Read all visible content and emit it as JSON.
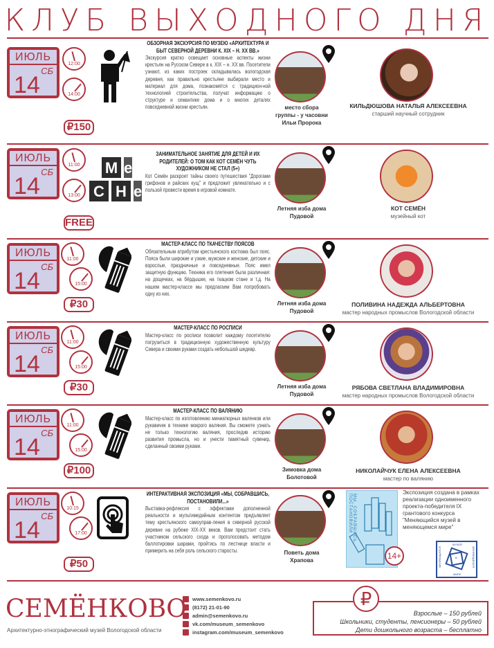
{
  "title": "КЛУБ ВЫХОДНОГО ДНЯ",
  "accent": "#b0323f",
  "calendar_fill": "#d2cfe8",
  "events": [
    {
      "month": "ИЮЛЬ",
      "dow": "СБ",
      "day": "14",
      "times": [
        "12:00",
        "14:00"
      ],
      "price": "₽150",
      "icon": "tour-guide-flag-icon",
      "title": "ОБЗОРНАЯ ЭКСКУРСИЯ ПО МУЗЕЮ «АРХИТЕКТУРА И БЫТ СЕВЕРНОЙ ДЕРЕВНИ К. XIX – Н. XX ВВ.»",
      "body": "Экскурсия кратко освещает основные аспекты жизни крестьян на Русском Севере в к. XIX – н. XX вв. Посетители узнают, из каких построек складывалась вологодская деревня, как правильно крестьяне выбирали место и материал для дома, познакомятся с традицион-ной технологией строительства, получат информацию о структуре и семантике дома и о многих деталях повседневной жизни крестьян.",
      "location": "место сбора группы - у часовни Ильи Пророка",
      "person": "КИЛЬДЮШОВА НАТАЛЬЯ АЛЕКСЕЕВНА",
      "role": "старший научный сотрудник"
    },
    {
      "month": "ИЮЛЬ",
      "dow": "СБ",
      "day": "14",
      "times": [
        "11:00",
        "13:00"
      ],
      "price": "FREE",
      "icon": "letter-cubes-icon",
      "cubes": [
        "М",
        "е",
        "С",
        "Н",
        "е"
      ],
      "title": "ЗАНИМАТЕЛЬНОЕ ЗАНЯТИЕ ДЛЯ ДЕТЕЙ И ИХ РОДИТЕЛЕЙ: О ТОМ КАК КОТ СЕМЁН ЧУТЬ ХУДОЖНИКОМ НЕ СТАЛ (5+)",
      "body": "Кот Семён раскроет тайны своего путешествия \"Дорогами грифонов и райских кущ\" и предложит увлекательно и с пользой провести время в игровой комнате.",
      "location": "Летняя изба дома Пудовой",
      "person": "КОТ СЕМЁН",
      "role": "музейный кот"
    },
    {
      "month": "ИЮЛЬ",
      "dow": "СБ",
      "day": "14",
      "times": [
        "11:00",
        "15:00"
      ],
      "price": "₽30",
      "icon": "pencil-leaf-icon",
      "title": "МАСТЕР-КЛАСС ПО ТКАЧЕСТВУ ПОЯСОВ",
      "body": "Обязательным атрибутом крестьянского костюма был пояс. Пояса были широкие и узкие, мужские и женские, детские и взрослые, праздничные и повседневные. Пояс имел защитную функцию. Техника его плетения была различная: на дощечках, на бёрдышке, на ткацком стане и т.д. На нашем мастер-классе мы предлагаем Вам попробовать одну из них.",
      "location": "Летняя изба дома Пудовой",
      "person": "ПОЛИВИНА НАДЕЖДА АЛЬБЕРТОВНА",
      "role": "мастер народных промыслов Вологодской области"
    },
    {
      "month": "ИЮЛЬ",
      "dow": "СБ",
      "day": "14",
      "times": [
        "11:00",
        "15:00"
      ],
      "price": "₽30",
      "icon": "pencil-leaf-icon",
      "title": "МАСТЕР-КЛАСС ПО РОСПИСИ",
      "body": "Мастер-класс по росписи позволит каждому посетителю погрузиться в традиционную художественную культуру Севера и своими руками создать небольшой шедевр.",
      "location": "Летняя изба дома Пудовой",
      "person": "РЯБОВА СВЕТЛАНА ВЛАДИМИРОВНА",
      "role": "мастер народных промыслов Вологодской области"
    },
    {
      "month": "ИЮЛЬ",
      "dow": "СБ",
      "day": "14",
      "times": [
        "11:00",
        "15:00"
      ],
      "price": "₽100",
      "icon": "pencil-leaf-icon",
      "title": "МАСТЕР-КЛАСС ПО ВАЛЯНИЮ",
      "body": "Мастер-класс по изготовлению миниатюрных валенков или рукавичек в технике мокрого валяния. Вы сможете узнать не только технологию валяния, проследив историю развития промысла, но и унести памятный сувенир, сделанный своими руками.",
      "location": "Зимовка дома Болотовой",
      "person": "НИКОЛАЙЧУК ЕЛЕНА АЛЕКСЕЕВНА",
      "role": "мастер по валянию"
    },
    {
      "month": "ИЮЛЬ",
      "dow": "СБ",
      "day": "14",
      "times": [
        "10:15",
        "17:00"
      ],
      "price": "₽50",
      "icon": "touch-tablet-icon",
      "title": "ИНТЕРАКТИВНАЯ ЭКСПОЗИЦИЯ «МЫ, СОБРАВШИСЬ, ПОСТАНОВИЛИ...»",
      "body": "Выставка-рефлексия с эффектами дополненной реальности и мультимедийным контентом предъявляет тему крестьянского самоуправ-ления в северной русской деревне на рубеже XIX-XX веков. Вам предстоит стать участником сельского схода и проголосовать методом баллотировки шарами, пройтись по лестнице власти и примерить на себя роль сельского старосты.",
      "location": "Поветь дома Храпова"
    }
  ],
  "exhibit": {
    "poster_text": "МЫ, СОБРАВШИСЬ, ПОСТАНОВИЛИ",
    "age": "14+",
    "note": "Экспозиция создана в рамках реализации одноименного проекта-победителя IX грантового конкурса \"Меняющийся музей в меняющемся мире\"",
    "logo_words": [
      "МУЗЕЙ",
      "МЕНЯЮЩИЙСЯ",
      "В",
      "МЕНЯЮЩЕМСЯ",
      "МИРЕ"
    ]
  },
  "footer": {
    "logo": "СЕМЁНКОВО",
    "subtitle": "Архитектурно-этнографический музей Вологодской области",
    "contacts": [
      {
        "icon": "globe-icon",
        "text": "www.semenkovo.ru"
      },
      {
        "icon": "phone-icon",
        "text": "(8172) 21-01-90"
      },
      {
        "icon": "email-icon",
        "text": "admin@semenkovo.ru"
      },
      {
        "icon": "vk-icon",
        "text": "vk.com/museum_semenkovo"
      },
      {
        "icon": "instagram-icon",
        "text": "instagram.com/museum_semenkovo"
      }
    ],
    "ruble": "₽",
    "prices": [
      "Взрослые – 150 рублей",
      "Школьники, студенты, пенсионеры – 50 рублей",
      "Дети дошкольного возраста – бесплатно"
    ]
  }
}
